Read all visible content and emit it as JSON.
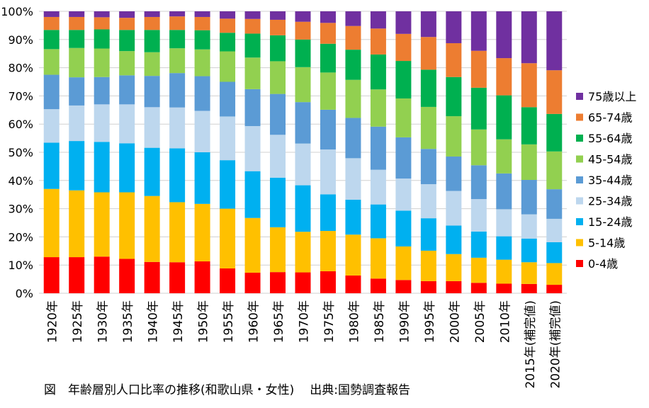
{
  "chart_data": {
    "type": "bar",
    "stacked": true,
    "categories": [
      "1920年",
      "1925年",
      "1930年",
      "1935年",
      "1940年",
      "1945年",
      "1950年",
      "1955年",
      "1960年",
      "1965年",
      "1970年",
      "1975年",
      "1980年",
      "1985年",
      "1990年",
      "1995年",
      "2000年",
      "2005年",
      "2010年",
      "2015年(補完値)",
      "2020年(補完値)"
    ],
    "ylim": [
      0,
      100
    ],
    "yticks": [
      "0%",
      "10%",
      "20%",
      "30%",
      "40%",
      "50%",
      "60%",
      "70%",
      "80%",
      "90%",
      "100%"
    ],
    "series": [
      {
        "name": "0-4歳",
        "color": "#ff0000",
        "values": [
          12.8,
          12.8,
          13.0,
          12.2,
          11.1,
          11.0,
          11.3,
          8.8,
          7.3,
          7.5,
          7.4,
          7.8,
          6.3,
          5.2,
          4.7,
          4.3,
          4.3,
          3.7,
          3.4,
          3.3,
          3.0
        ]
      },
      {
        "name": "5-14歳",
        "color": "#ffc000",
        "values": [
          24.2,
          23.7,
          22.8,
          23.6,
          23.4,
          21.3,
          20.4,
          21.2,
          19.4,
          15.9,
          14.4,
          14.3,
          14.5,
          14.3,
          11.9,
          10.8,
          9.6,
          8.9,
          8.5,
          7.7,
          7.7
        ]
      },
      {
        "name": "15-24歳",
        "color": "#00b0f0",
        "values": [
          16.4,
          17.5,
          17.9,
          17.4,
          17.1,
          19.1,
          18.3,
          17.2,
          16.6,
          17.6,
          16.5,
          13.0,
          12.4,
          12.0,
          12.7,
          11.5,
          10.1,
          9.3,
          8.3,
          8.4,
          7.4
        ]
      },
      {
        "name": "25-34歳",
        "color": "#bdd7ee",
        "values": [
          11.9,
          12.6,
          13.3,
          13.8,
          14.4,
          14.5,
          14.7,
          15.5,
          16.0,
          15.2,
          14.8,
          15.9,
          14.7,
          12.3,
          11.4,
          12.1,
          12.3,
          11.5,
          9.6,
          8.6,
          8.3
        ]
      },
      {
        "name": "35-44歳",
        "color": "#5b9bd5",
        "values": [
          12.2,
          10.0,
          9.7,
          10.3,
          11.1,
          12.2,
          12.3,
          12.3,
          13.1,
          14.5,
          14.7,
          14.1,
          14.3,
          15.3,
          14.6,
          12.5,
          12.2,
          12.0,
          12.7,
          12.2,
          10.5
        ]
      },
      {
        "name": "45-54歳",
        "color": "#92d050",
        "values": [
          9.1,
          10.4,
          10.1,
          8.6,
          8.4,
          8.8,
          9.5,
          10.8,
          11.2,
          11.6,
          12.4,
          13.2,
          13.5,
          13.2,
          13.8,
          14.9,
          14.3,
          12.7,
          12.1,
          12.6,
          13.4
        ]
      },
      {
        "name": "55-64歳",
        "color": "#00b050",
        "values": [
          6.8,
          6.4,
          6.8,
          7.5,
          7.9,
          6.5,
          6.8,
          6.6,
          8.5,
          9.2,
          9.8,
          10.2,
          10.7,
          12.4,
          13.3,
          13.2,
          13.9,
          14.8,
          15.6,
          13.2,
          13.3
        ]
      },
      {
        "name": "65-74歳",
        "color": "#ed7d31",
        "values": [
          4.6,
          4.6,
          4.3,
          4.3,
          4.6,
          4.8,
          4.7,
          5.0,
          5.2,
          5.5,
          6.3,
          7.4,
          8.4,
          9.2,
          9.6,
          11.6,
          12.0,
          13.1,
          13.2,
          15.6,
          15.5
        ]
      },
      {
        "name": "75歳以上",
        "color": "#7030a0",
        "values": [
          2.0,
          2.0,
          2.1,
          2.3,
          2.0,
          1.8,
          2.0,
          2.6,
          2.7,
          3.0,
          3.7,
          4.1,
          5.2,
          6.1,
          8.0,
          9.1,
          11.3,
          14.0,
          16.6,
          18.4,
          20.9
        ]
      }
    ]
  },
  "caption": {
    "title": "図　年齢層別人口比率の推移(和歌山県・女性)",
    "source": "出典:国勢調査報告"
  }
}
